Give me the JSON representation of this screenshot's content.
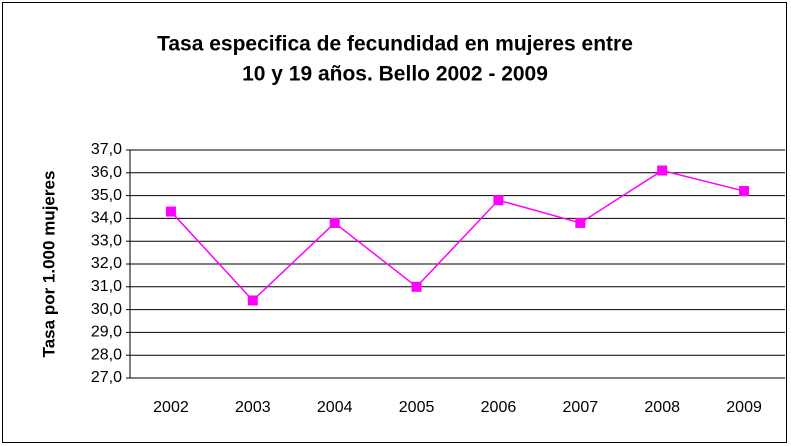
{
  "chart_data": {
    "type": "line",
    "title": [
      "Tasa especifica de fecundidad en mujeres entre",
      "10 y 19 años. Bello 2002 - 2009"
    ],
    "y_label": "Tasa por 1.000 mujeres",
    "categories": [
      "2002",
      "2003",
      "2004",
      "2005",
      "2006",
      "2007",
      "2008",
      "2009"
    ],
    "values": [
      34.3,
      30.4,
      33.8,
      31.0,
      34.8,
      33.8,
      36.1,
      35.2
    ],
    "color": "#ff00ff",
    "ylim": [
      27,
      37
    ],
    "yticks": [
      {
        "value": 27,
        "label": "27,0"
      },
      {
        "value": 28,
        "label": "28,0"
      },
      {
        "value": 29,
        "label": "29,0"
      },
      {
        "value": 30,
        "label": "30,0"
      },
      {
        "value": 31,
        "label": "31,0"
      },
      {
        "value": 32,
        "label": "32,0"
      },
      {
        "value": 33,
        "label": "33,0"
      },
      {
        "value": 34,
        "label": "34,0"
      },
      {
        "value": 35,
        "label": "35,0"
      },
      {
        "value": 36,
        "label": "36,0"
      },
      {
        "value": 37,
        "label": "37,0"
      }
    ],
    "grid": true
  }
}
